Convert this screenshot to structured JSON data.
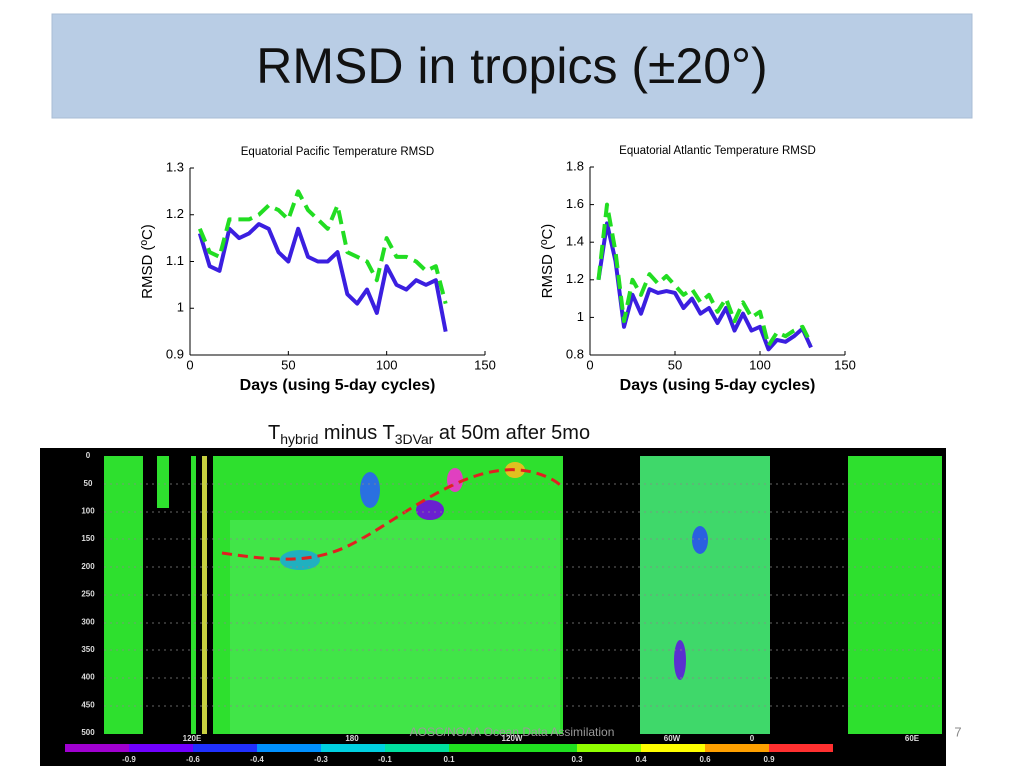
{
  "slide_title": "RMSD in tropics (±20°)",
  "chart_data": [
    {
      "type": "line",
      "title": "Equatorial Pacific Temperature RMSD",
      "xlabel": "Days (using 5-day cycles)",
      "ylabel": "RMSD (ºC)",
      "x": [
        5,
        10,
        15,
        20,
        25,
        30,
        35,
        40,
        45,
        50,
        55,
        60,
        65,
        70,
        75,
        80,
        85,
        90,
        95,
        100,
        105,
        110,
        115,
        120,
        125,
        130
      ],
      "xlim": [
        0,
        150
      ],
      "xticks": [
        0,
        50,
        100,
        150
      ],
      "ylim": [
        0.9,
        1.3
      ],
      "yticks": [
        0.9,
        1,
        1.1,
        1.2,
        1.3
      ],
      "series": [
        {
          "color": "#3b1fe0",
          "style": "solid",
          "values": [
            1.16,
            1.09,
            1.08,
            1.17,
            1.15,
            1.16,
            1.18,
            1.17,
            1.12,
            1.1,
            1.17,
            1.11,
            1.1,
            1.1,
            1.12,
            1.03,
            1.01,
            1.04,
            0.99,
            1.09,
            1.05,
            1.04,
            1.06,
            1.05,
            1.06,
            0.95
          ]
        },
        {
          "color": "#22dd22",
          "style": "dashed",
          "values": [
            1.17,
            1.12,
            1.11,
            1.19,
            1.19,
            1.19,
            1.2,
            1.22,
            1.21,
            1.19,
            1.25,
            1.21,
            1.19,
            1.17,
            1.22,
            1.12,
            1.11,
            1.1,
            1.06,
            1.15,
            1.11,
            1.11,
            1.1,
            1.08,
            1.09,
            1.01
          ]
        }
      ]
    },
    {
      "type": "line",
      "title": "Equatorial Atlantic Temperature RMSD",
      "xlabel": "Days (using 5-day cycles)",
      "ylabel": "RMSD (ºC)",
      "x": [
        5,
        10,
        15,
        20,
        25,
        30,
        35,
        40,
        45,
        50,
        55,
        60,
        65,
        70,
        75,
        80,
        85,
        90,
        95,
        100,
        105,
        110,
        115,
        120,
        125,
        130
      ],
      "xlim": [
        0,
        150
      ],
      "xticks": [
        0,
        50,
        100,
        150
      ],
      "ylim": [
        0.8,
        1.8
      ],
      "yticks": [
        0.8,
        1,
        1.2,
        1.4,
        1.6,
        1.8
      ],
      "series": [
        {
          "color": "#3b1fe0",
          "style": "solid",
          "values": [
            1.2,
            1.5,
            1.3,
            0.95,
            1.12,
            1.02,
            1.15,
            1.13,
            1.14,
            1.13,
            1.05,
            1.1,
            1.02,
            1.05,
            0.97,
            1.05,
            0.93,
            1.02,
            0.93,
            0.95,
            0.83,
            0.88,
            0.87,
            0.9,
            0.94,
            0.84
          ]
        },
        {
          "color": "#22dd22",
          "style": "dashed",
          "values": [
            1.2,
            1.6,
            1.35,
            0.98,
            1.2,
            1.12,
            1.23,
            1.18,
            1.22,
            1.17,
            1.12,
            1.15,
            1.08,
            1.12,
            1.03,
            1.1,
            0.98,
            1.08,
            1.0,
            1.03,
            0.85,
            0.92,
            0.9,
            0.93,
            0.95,
            0.86
          ]
        }
      ]
    }
  ],
  "figure": {
    "caption": [
      {
        "text": "T"
      },
      {
        "text": "hybrid",
        "sub": true
      },
      {
        "text": " minus T"
      },
      {
        "text": "3DVar",
        "sub": true
      },
      {
        "text": " at 50m after 5mo"
      }
    ],
    "depth_labels": [
      "0",
      "50",
      "100",
      "150",
      "200",
      "250",
      "300",
      "350",
      "400",
      "450",
      "500"
    ],
    "lon_labels": [
      "120E",
      "180",
      "120W",
      "60W",
      "0",
      "60E"
    ],
    "colorbar_labels": [
      "-0.9",
      "-0.6",
      "-0.4",
      "-0.3",
      "-0.1",
      "0.1",
      "0.3",
      "0.4",
      "0.6",
      "0.9"
    ]
  },
  "footer": "AOSC/NOAA Ocean Data Assimilation",
  "page_number": "7"
}
